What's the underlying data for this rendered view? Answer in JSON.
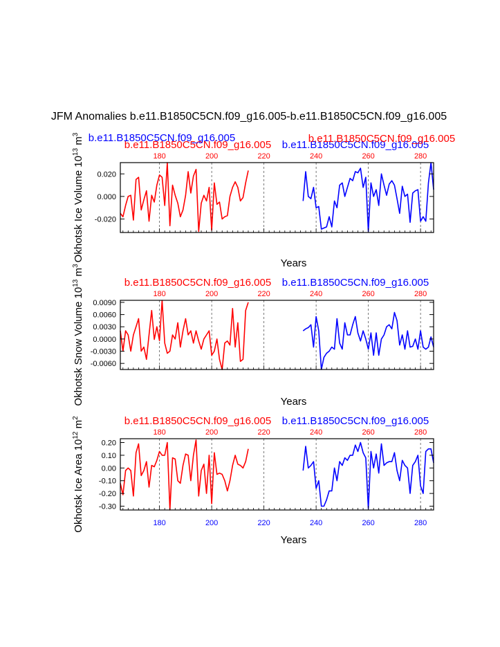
{
  "figure": {
    "title": "JFM Anomalies b.e11.B1850C5CN.f09_g16.005-b.e11.B1850C5CN.f09_g16.005",
    "colors": {
      "red": "#ff0000",
      "blue": "#0000ff",
      "axis": "#000000",
      "grid": "#555555"
    }
  },
  "chart_data": [
    {
      "type": "line",
      "ylabel": "Okhotsk Ice Volume 10",
      "ylabel_exp": "13",
      "ylabel_unit": "m",
      "ylabel_unit_exp": "3",
      "xlabel": "Years",
      "xlim": [
        165,
        285
      ],
      "ylim": [
        -0.032,
        0.03
      ],
      "yticks": [
        -0.02,
        0.0,
        0.02
      ],
      "ytick_labels": [
        "-0.020",
        "0.000",
        "0.020"
      ],
      "xticks": [
        180,
        200,
        220,
        240,
        260,
        280
      ],
      "xtick_labels_top": [
        "180",
        "200",
        "220",
        "240",
        "260",
        "280"
      ],
      "xtick_labels_bottom": [
        "180",
        "200",
        "220",
        "240",
        "260",
        "280"
      ],
      "show_bottom_labels": false,
      "grid_x": [
        180,
        200,
        220,
        240,
        260,
        280
      ],
      "series": [
        {
          "name": "b.e11.B1850C5CN.f09_g16.005",
          "color": "#ff0000",
          "x": [
            165,
            166,
            167,
            168,
            169,
            170,
            171,
            172,
            173,
            174,
            175,
            176,
            177,
            178,
            179,
            180,
            181,
            182,
            183,
            184,
            185,
            186,
            187,
            188,
            189,
            190,
            191,
            192,
            193,
            194,
            195,
            196,
            197,
            198,
            199,
            200,
            201,
            202,
            203,
            204,
            205,
            206,
            207,
            208,
            209,
            210,
            211,
            212,
            213,
            214
          ],
          "values": [
            -0.015,
            -0.018,
            -0.008,
            0.0,
            0.001,
            -0.021,
            0.015,
            0.017,
            -0.012,
            -0.003,
            0.005,
            -0.022,
            0.001,
            -0.005,
            0.01,
            0.019,
            0.017,
            -0.008,
            0.03,
            -0.026,
            0.01,
            0.001,
            -0.006,
            -0.018,
            -0.012,
            0.001,
            0.022,
            0.003,
            0.018,
            0.024,
            -0.031,
            -0.006,
            0.001,
            -0.004,
            0.008,
            -0.03,
            0.012,
            -0.007,
            -0.005,
            -0.02,
            -0.018,
            -0.017,
            0.0,
            0.008,
            0.013,
            0.008,
            -0.004,
            -0.001,
            0.012,
            0.023
          ]
        },
        {
          "name": "b.e11.B1850C5CN.f09_g16.005",
          "color": "#0000ff",
          "x": [
            235,
            236,
            237,
            238,
            239,
            240,
            241,
            242,
            243,
            244,
            245,
            246,
            247,
            248,
            249,
            250,
            251,
            252,
            253,
            254,
            255,
            256,
            257,
            258,
            259,
            260,
            261,
            262,
            263,
            264,
            265,
            266,
            267,
            268,
            269,
            270,
            271,
            272,
            273,
            274,
            275,
            276,
            277,
            278,
            279,
            280,
            281,
            282,
            283,
            284,
            285
          ],
          "values": [
            -0.004,
            0.022,
            0.0,
            -0.002,
            0.008,
            -0.01,
            -0.009,
            -0.029,
            -0.028,
            -0.027,
            -0.018,
            -0.027,
            -0.004,
            -0.01,
            0.01,
            0.012,
            0.0,
            0.008,
            0.016,
            0.014,
            0.022,
            0.021,
            0.025,
            0.008,
            0.017,
            -0.031,
            0.012,
            0.0,
            0.006,
            -0.008,
            0.02,
            0.01,
            0.001,
            0.011,
            0.014,
            0.01,
            -0.002,
            -0.015,
            0.009,
            0.0,
            0.002,
            -0.023,
            0.003,
            0.005,
            0.006,
            -0.022,
            -0.018,
            -0.022,
            0.012,
            0.03,
            0.006
          ]
        }
      ]
    },
    {
      "type": "line",
      "ylabel": "Okhotsk Snow Volume 10",
      "ylabel_exp": "13",
      "ylabel_unit": "m",
      "ylabel_unit_exp": "3",
      "xlabel": "Years",
      "xlim": [
        165,
        285
      ],
      "ylim": [
        -0.0075,
        0.0095
      ],
      "yticks": [
        -0.006,
        -0.003,
        0.0,
        0.003,
        0.006,
        0.009
      ],
      "ytick_labels": [
        "-0.0060",
        "-0.0030",
        "0.0000",
        "0.0030",
        "0.0060",
        "0.0090"
      ],
      "xticks": [
        180,
        200,
        220,
        240,
        260,
        280
      ],
      "xtick_labels_top": [
        "180",
        "200",
        "220",
        "240",
        "260",
        "280"
      ],
      "xtick_labels_bottom": [
        "180",
        "200",
        "220",
        "240",
        "260",
        "280"
      ],
      "show_bottom_labels": false,
      "grid_x": [
        180,
        200,
        220,
        240,
        260,
        280
      ],
      "series": [
        {
          "name": "b.e11.B1850C5CN.f09_g16.005",
          "color": "#ff0000",
          "x": [
            165,
            166,
            167,
            168,
            169,
            170,
            171,
            172,
            173,
            174,
            175,
            176,
            177,
            178,
            179,
            180,
            181,
            182,
            183,
            184,
            185,
            186,
            187,
            188,
            189,
            190,
            191,
            192,
            193,
            194,
            195,
            196,
            197,
            198,
            199,
            200,
            201,
            202,
            203,
            204,
            205,
            206,
            207,
            208,
            209,
            210,
            211,
            212,
            213,
            214
          ],
          "values": [
            0.002,
            -0.003,
            0.002,
            0.001,
            -0.003,
            0.001,
            0.003,
            0.005,
            -0.003,
            -0.002,
            -0.005,
            0.001,
            0.007,
            -0.0001,
            0.003,
            -0.0004,
            0.0095,
            -0.001,
            -0.0035,
            -0.003,
            0.001,
            0.0,
            0.004,
            -0.002,
            0.002,
            0.005,
            0.001,
            0.002,
            -0.001,
            0.002,
            -0.0005,
            -0.0025,
            0.0,
            0.001,
            0.002,
            -0.004,
            -0.003,
            0.0,
            -0.005,
            -0.0075,
            -0.001,
            -0.0005,
            -0.0015,
            0.0075,
            -0.002,
            0.004,
            -0.0055,
            -0.005,
            0.007,
            0.009
          ]
        },
        {
          "name": "b.e11.B1850C5CN.f09_g16.005",
          "color": "#0000ff",
          "x": [
            235,
            236,
            237,
            238,
            239,
            240,
            241,
            242,
            243,
            244,
            245,
            246,
            247,
            248,
            249,
            250,
            251,
            252,
            253,
            254,
            255,
            256,
            257,
            258,
            259,
            260,
            261,
            262,
            263,
            264,
            265,
            266,
            267,
            268,
            269,
            270,
            271,
            272,
            273,
            274,
            275,
            276,
            277,
            278,
            279,
            280,
            281,
            282,
            283,
            284,
            285
          ],
          "values": [
            0.002,
            0.0025,
            0.0028,
            0.0035,
            -0.002,
            0.0055,
            0.002,
            -0.0075,
            -0.0045,
            -0.0035,
            -0.003,
            -0.002,
            -0.0025,
            0.005,
            -0.001,
            -0.0025,
            0.004,
            0.001,
            0.001,
            0.0035,
            0.0055,
            0.0015,
            -0.0005,
            0.002,
            0.0,
            -0.0025,
            0.0015,
            -0.004,
            0.0015,
            -0.004,
            0.0,
            0.001,
            0.003,
            0.0035,
            0.0025,
            0.0065,
            0.0045,
            -0.0015,
            0.001,
            -0.0025,
            0.002,
            -0.002,
            -0.0018,
            0.0,
            -0.0025,
            0.002,
            -0.002,
            -0.0025,
            -0.002,
            0.0005,
            -0.002
          ]
        }
      ]
    },
    {
      "type": "line",
      "ylabel": "Okhotsk Ice Area 10",
      "ylabel_exp": "12",
      "ylabel_unit": "m",
      "ylabel_unit_exp": "2",
      "xlabel": "Years",
      "xlim": [
        165,
        285
      ],
      "ylim": [
        -0.33,
        0.23
      ],
      "yticks": [
        -0.3,
        -0.2,
        -0.1,
        0.0,
        0.1,
        0.2
      ],
      "ytick_labels": [
        "-0.30",
        "-0.20",
        "-0.10",
        "0.00",
        "0.10",
        "0.20"
      ],
      "xticks": [
        180,
        200,
        220,
        240,
        260,
        280
      ],
      "xtick_labels_top": [
        "180",
        "200",
        "220",
        "240",
        "260",
        "280"
      ],
      "xtick_labels_bottom": [
        "180",
        "200",
        "220",
        "240",
        "260",
        "280"
      ],
      "show_bottom_labels": true,
      "grid_x": [
        180,
        200,
        220,
        240,
        260,
        280
      ],
      "series": [
        {
          "name": "b.e11.B1850C5CN.f09_g16.005",
          "color": "#ff0000",
          "x": [
            165,
            166,
            167,
            168,
            169,
            170,
            171,
            172,
            173,
            174,
            175,
            176,
            177,
            178,
            179,
            180,
            181,
            182,
            183,
            184,
            185,
            186,
            187,
            188,
            189,
            190,
            191,
            192,
            193,
            194,
            195,
            196,
            197,
            198,
            199,
            200,
            201,
            202,
            203,
            204,
            205,
            206,
            207,
            208,
            209,
            210,
            211,
            212,
            213,
            214
          ],
          "values": [
            -0.12,
            -0.21,
            -0.02,
            0.0,
            -0.02,
            -0.22,
            0.12,
            0.19,
            -0.06,
            -0.02,
            0.05,
            -0.15,
            0.02,
            0.01,
            0.06,
            0.13,
            0.1,
            0.1,
            0.2,
            -0.33,
            0.08,
            0.07,
            -0.1,
            -0.12,
            0.02,
            0.11,
            0.1,
            -0.1,
            0.1,
            0.22,
            -0.22,
            -0.02,
            0.03,
            -0.2,
            0.1,
            -0.28,
            0.12,
            -0.05,
            -0.04,
            -0.05,
            -0.1,
            -0.18,
            -0.1,
            0.02,
            0.1,
            0.03,
            0.02,
            0.0,
            0.05,
            0.15
          ]
        },
        {
          "name": "b.e11.B1850C5CN.f09_g16.005",
          "color": "#0000ff",
          "x": [
            235,
            236,
            237,
            238,
            239,
            240,
            241,
            242,
            243,
            244,
            245,
            246,
            247,
            248,
            249,
            250,
            251,
            252,
            253,
            254,
            255,
            256,
            257,
            258,
            259,
            260,
            261,
            262,
            263,
            264,
            265,
            266,
            267,
            268,
            269,
            270,
            271,
            272,
            273,
            274,
            275,
            276,
            277,
            278,
            279,
            280,
            281,
            282,
            283,
            284,
            285
          ],
          "values": [
            -0.02,
            0.17,
            0.0,
            0.02,
            0.05,
            -0.16,
            -0.1,
            -0.3,
            -0.3,
            -0.25,
            -0.18,
            -0.18,
            0.0,
            -0.1,
            0.05,
            0.02,
            0.08,
            0.06,
            0.1,
            0.1,
            0.18,
            0.13,
            0.2,
            0.12,
            0.08,
            -0.32,
            0.13,
            0.0,
            0.11,
            -0.04,
            0.19,
            0.02,
            0.04,
            0.05,
            0.05,
            0.12,
            -0.02,
            -0.1,
            0.06,
            0.02,
            0.0,
            -0.2,
            0.02,
            0.05,
            0.1,
            -0.14,
            -0.2,
            0.13,
            0.15,
            0.15,
            0.04
          ]
        }
      ]
    }
  ]
}
